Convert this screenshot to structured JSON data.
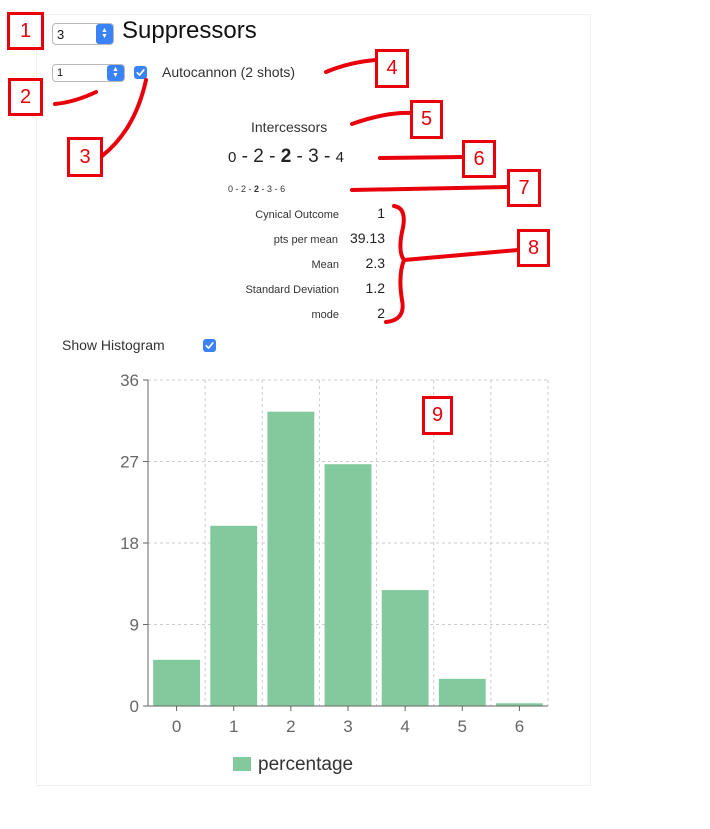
{
  "header": {
    "count_select_value": "3",
    "title": "Suppressors"
  },
  "weapon": {
    "qty_select_value": "1",
    "checked": true,
    "label": "Autocannon (2 shots)"
  },
  "target": {
    "name": "Intercessors",
    "distribution": [
      "0",
      "2",
      "2",
      "3",
      "4"
    ],
    "distribution_small": [
      "0",
      "2",
      "2",
      "3",
      "6"
    ]
  },
  "stats": [
    {
      "label": "Cynical Outcome",
      "value": "1"
    },
    {
      "label": "pts per mean",
      "value": "39.13"
    },
    {
      "label": "Mean",
      "value": "2.3"
    },
    {
      "label": "Standard Deviation",
      "value": "1.2"
    },
    {
      "label": "mode",
      "value": "2"
    }
  ],
  "histogram_toggle": {
    "label": "Show Histogram",
    "checked": true
  },
  "chart_data": {
    "type": "bar",
    "categories": [
      "0",
      "1",
      "2",
      "3",
      "4",
      "5",
      "6"
    ],
    "series": [
      {
        "name": "percentage",
        "values": [
          5.1,
          19.9,
          32.5,
          26.7,
          12.8,
          3.0,
          0.3
        ]
      }
    ],
    "ylim": [
      0,
      36
    ],
    "yticks": [
      "0",
      "9",
      "18",
      "27",
      "36"
    ],
    "grid": true,
    "legend": "bottom",
    "bar_color": "#82ca9d"
  },
  "annotations": [
    "1",
    "2",
    "3",
    "4",
    "5",
    "6",
    "7",
    "8",
    "9"
  ],
  "colors": {
    "accent": "#3a82f7",
    "annotation": "#e8000b",
    "bar": "#82ca9d"
  }
}
